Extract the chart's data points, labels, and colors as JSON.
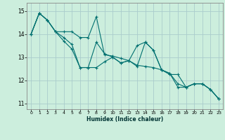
{
  "xlabel": "Humidex (Indice chaleur)",
  "xlim": [
    -0.5,
    23.5
  ],
  "ylim": [
    10.75,
    15.35
  ],
  "yticks": [
    11,
    12,
    13,
    14,
    15
  ],
  "xticks": [
    0,
    1,
    2,
    3,
    4,
    5,
    6,
    7,
    8,
    9,
    10,
    11,
    12,
    13,
    14,
    15,
    16,
    17,
    18,
    19,
    20,
    21,
    22,
    23
  ],
  "bg_color": "#cceedd",
  "grid_color": "#aacccc",
  "line_color": "#007070",
  "lines": [
    [
      14.0,
      14.9,
      14.6,
      14.1,
      13.85,
      13.55,
      12.55,
      12.55,
      13.65,
      13.15,
      13.0,
      12.75,
      12.85,
      12.6,
      13.65,
      13.3,
      12.45,
      12.3,
      11.7,
      11.7,
      11.85,
      11.85,
      11.6,
      11.2
    ],
    [
      14.0,
      14.9,
      14.6,
      14.1,
      14.1,
      14.1,
      13.85,
      13.85,
      14.75,
      13.1,
      13.05,
      12.95,
      12.85,
      12.65,
      12.6,
      12.55,
      12.45,
      12.3,
      11.85,
      11.7,
      11.85,
      11.85,
      11.6,
      11.2
    ],
    [
      14.0,
      14.9,
      14.6,
      14.1,
      13.7,
      13.35,
      12.55,
      12.55,
      12.55,
      12.8,
      13.0,
      12.75,
      12.85,
      13.5,
      13.65,
      13.3,
      12.45,
      12.25,
      12.25,
      11.7,
      11.85,
      11.85,
      11.6,
      11.2
    ]
  ]
}
